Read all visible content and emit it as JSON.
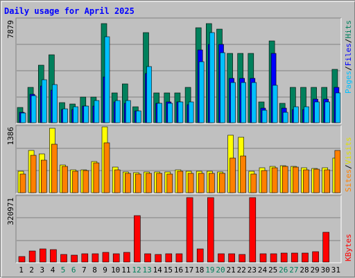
{
  "title": "Daily usage for April 2025",
  "max_labels": {
    "hits": "7879",
    "visits": "1386",
    "kbytes": "320971"
  },
  "right_labels": {
    "pages": "Pages",
    "files": "Files",
    "hits": "Hits",
    "sites": "Sites",
    "visits": "Visits",
    "kbytes": "KBytes",
    "sep": "/"
  },
  "colors": {
    "hits": "#00805c",
    "files": "#0000ff",
    "pages": "#00c0ff",
    "visits": "#ffff00",
    "sites": "#ff8000",
    "kbytes": "#ff0000",
    "title": "#0000ff",
    "weekend": "#00805c",
    "weekday": "#000000"
  },
  "chart_data": [
    {
      "type": "bar",
      "categories": [
        "1",
        "2",
        "3",
        "4",
        "5",
        "6",
        "7",
        "8",
        "9",
        "10",
        "11",
        "12",
        "13",
        "14",
        "15",
        "16",
        "17",
        "18",
        "19",
        "20",
        "21",
        "22",
        "23",
        "24",
        "25",
        "26",
        "27",
        "28",
        "29",
        "30",
        "31"
      ],
      "weekend_days": [
        5,
        6,
        12,
        13,
        19,
        20,
        26,
        27
      ],
      "ylim": [
        0,
        7879
      ],
      "series": [
        {
          "name": "Hits",
          "values": [
            1150,
            2700,
            4400,
            5200,
            1550,
            1450,
            1990,
            1990,
            7600,
            2300,
            3000,
            1250,
            6900,
            2300,
            2300,
            2300,
            2700,
            7300,
            7600,
            7200,
            5300,
            5300,
            5300,
            1600,
            6300,
            1500,
            2700,
            2700,
            2700,
            2700,
            4100
          ]
        },
        {
          "name": "Files",
          "values": [
            800,
            2200,
            2800,
            2500,
            1000,
            1000,
            1300,
            1300,
            3500,
            1600,
            1500,
            900,
            3800,
            1500,
            1600,
            1600,
            1400,
            5600,
            6000,
            6000,
            3400,
            3400,
            3400,
            1100,
            5300,
            1100,
            1000,
            1000,
            1800,
            1800,
            2700
          ]
        },
        {
          "name": "Pages",
          "values": [
            750,
            2100,
            3300,
            2950,
            1050,
            1200,
            1300,
            1700,
            6600,
            1700,
            1700,
            900,
            4300,
            1500,
            1500,
            1600,
            1600,
            4700,
            6900,
            5400,
            3100,
            3100,
            3100,
            950,
            2900,
            800,
            1200,
            1200,
            1600,
            1600,
            2300
          ]
        }
      ]
    },
    {
      "type": "bar",
      "categories": [
        "1",
        "2",
        "3",
        "4",
        "5",
        "6",
        "7",
        "8",
        "9",
        "10",
        "11",
        "12",
        "13",
        "14",
        "15",
        "16",
        "17",
        "18",
        "19",
        "20",
        "21",
        "22",
        "23",
        "24",
        "25",
        "26",
        "27",
        "28",
        "29",
        "30",
        "31"
      ],
      "ylim": [
        0,
        1386
      ],
      "series": [
        {
          "name": "Visits",
          "values": [
            450,
            900,
            820,
            1370,
            590,
            480,
            490,
            660,
            1400,
            550,
            440,
            430,
            440,
            440,
            440,
            480,
            450,
            460,
            450,
            440,
            1220,
            1180,
            460,
            530,
            560,
            570,
            560,
            530,
            520,
            530,
            740
          ]
        },
        {
          "name": "Sites",
          "values": [
            400,
            800,
            690,
            1030,
            560,
            450,
            470,
            640,
            1060,
            490,
            410,
            400,
            410,
            410,
            400,
            460,
            410,
            410,
            420,
            420,
            740,
            780,
            400,
            470,
            530,
            560,
            550,
            490,
            500,
            490,
            900
          ]
        }
      ]
    },
    {
      "type": "bar",
      "categories": [
        "1",
        "2",
        "3",
        "4",
        "5",
        "6",
        "7",
        "8",
        "9",
        "10",
        "11",
        "12",
        "13",
        "14",
        "15",
        "16",
        "17",
        "18",
        "19",
        "20",
        "21",
        "22",
        "23",
        "24",
        "25",
        "26",
        "27",
        "28",
        "29",
        "30",
        "31"
      ],
      "ylim": [
        0,
        320971
      ],
      "series": [
        {
          "name": "KBytes",
          "values": [
            28000,
            55000,
            65000,
            62000,
            37000,
            35000,
            40000,
            43000,
            48000,
            42000,
            48000,
            230000,
            43000,
            38000,
            40000,
            42000,
            320000,
            65000,
            320000,
            42000,
            42000,
            38000,
            320000,
            40000,
            43000,
            45000,
            45000,
            45000,
            52000,
            150000,
            0
          ]
        }
      ]
    }
  ]
}
